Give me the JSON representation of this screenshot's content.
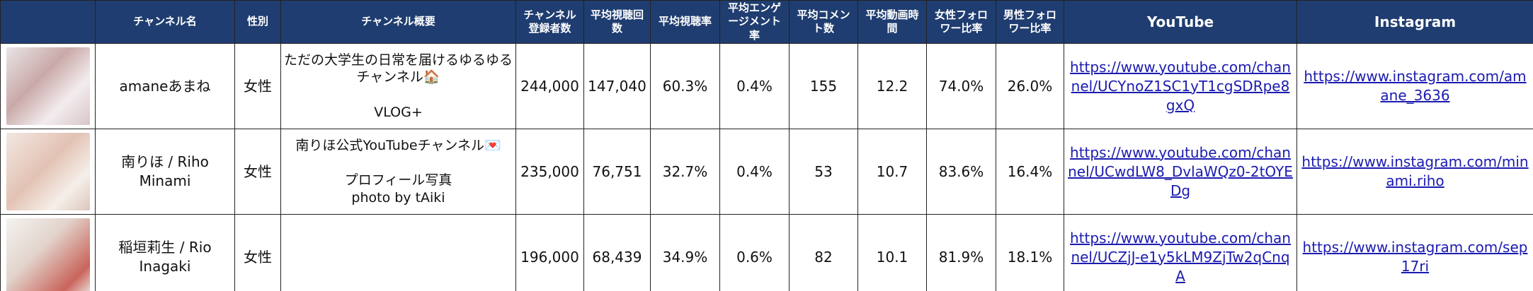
{
  "table": {
    "headers": [
      "チャンネル名",
      "性別",
      "チャンネル概要",
      "チャンネル登録者数",
      "平均視聴回数",
      "平均視聴率",
      "平均エンゲージメント率",
      "平均コメント数",
      "平均動画時間",
      "女性フォロワー比率",
      "男性フォロワー比率",
      "YouTube",
      "Instagram"
    ],
    "rows": [
      {
        "name": "amaneあまね",
        "gender": "女性",
        "description": "ただの大学生の日常を届けるゆるゆるチャンネル🏠\n\nVLOG+",
        "subscribers": "244,000",
        "avg_views": "147,040",
        "view_rate": "60.3%",
        "engagement": "0.4%",
        "comments": "155",
        "duration": "12.2",
        "female": "74.0%",
        "male": "26.0%",
        "youtube": "https://www.youtube.com/channel/UCYnoZ1SC1yT1cgSDRpe8gxQ",
        "instagram": "https://www.instagram.com/amane_3636"
      },
      {
        "name": "南りほ / Riho Minami",
        "gender": "女性",
        "description": "南りほ公式YouTubeチャンネル💌\n\nプロフィール写真\nphoto by tAiki",
        "subscribers": "235,000",
        "avg_views": "76,751",
        "view_rate": "32.7%",
        "engagement": "0.4%",
        "comments": "53",
        "duration": "10.7",
        "female": "83.6%",
        "male": "16.4%",
        "youtube": "https://www.youtube.com/channel/UCwdLW8_DvlaWQz0-2tOYEDg",
        "instagram": "https://www.instagram.com/minami.riho"
      },
      {
        "name": "稲垣莉生 / Rio Inagaki",
        "gender": "女性",
        "subscribers": "196,000",
        "avg_views": "68,439",
        "view_rate": "34.9%",
        "engagement": "0.6%",
        "comments": "82",
        "duration": "10.1",
        "female": "81.9%",
        "male": "18.1%",
        "youtube": "https://www.youtube.com/channel/UCZjJ-e1y5kLM9ZjTw2qCnqA",
        "instagram": "https://www.instagram.com/sep17ri"
      }
    ]
  }
}
